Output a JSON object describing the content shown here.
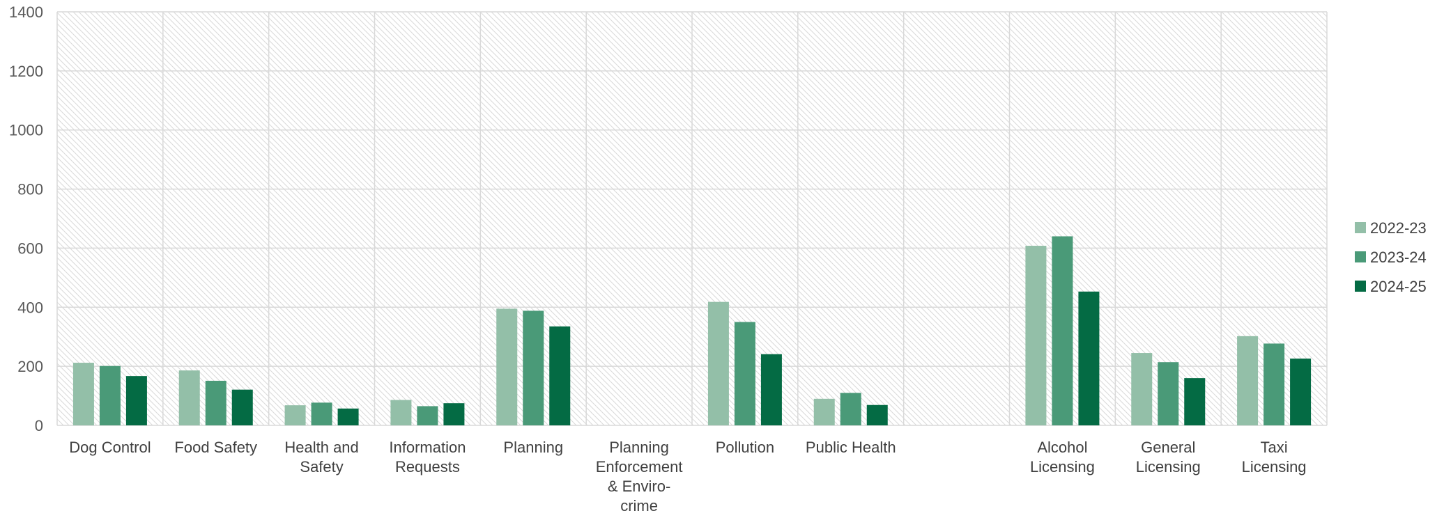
{
  "chart_data": {
    "type": "bar",
    "title": "",
    "xlabel": "",
    "ylabel": "",
    "ylim": [
      0,
      1400
    ],
    "yticks": [
      0,
      200,
      400,
      600,
      800,
      1000,
      1200,
      1400
    ],
    "grid": true,
    "legend_position": "right",
    "categories": [
      [
        "Dog Control"
      ],
      [
        "Food Safety"
      ],
      [
        "Health and",
        "Safety"
      ],
      [
        "Information",
        "Requests"
      ],
      [
        "Planning"
      ],
      [
        "Planning",
        "Enforcement",
        "& Enviro-",
        "crime"
      ],
      [
        "Pollution"
      ],
      [
        "Public Health"
      ],
      [
        ""
      ],
      [
        "Alcohol",
        "Licensing"
      ],
      [
        "General",
        "Licensing"
      ],
      [
        "Taxi",
        "Licensing"
      ]
    ],
    "series": [
      {
        "name": "2022-23",
        "color": "#93bfa8",
        "values": [
          212,
          186,
          68,
          86,
          395,
          null,
          418,
          90,
          null,
          608,
          245,
          302
        ]
      },
      {
        "name": "2023-24",
        "color": "#4a9a78",
        "values": [
          201,
          151,
          77,
          65,
          388,
          null,
          350,
          110,
          null,
          640,
          214,
          277
        ]
      },
      {
        "name": "2024-25",
        "color": "#046b44",
        "values": [
          167,
          121,
          57,
          75,
          335,
          null,
          241,
          69,
          null,
          453,
          160,
          226
        ]
      }
    ]
  }
}
